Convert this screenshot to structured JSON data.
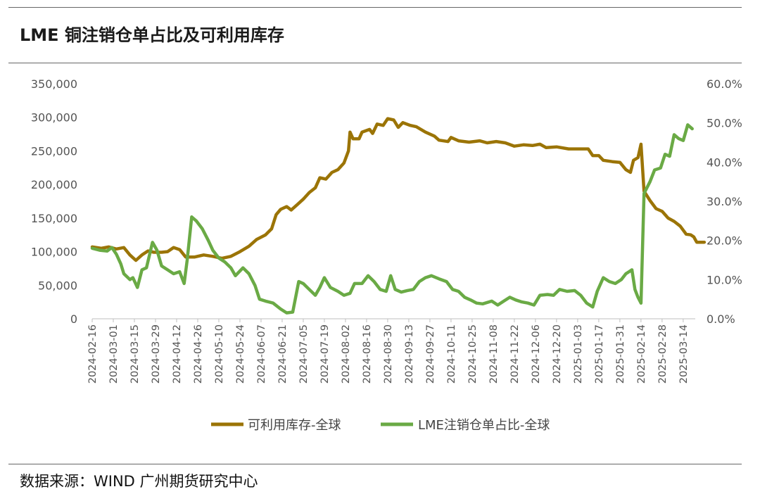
{
  "header": {
    "title": "LME 铜注销仓单占比及可利用库存"
  },
  "footer": {
    "source": "数据来源：WIND  广州期货研究中心"
  },
  "chart_data": {
    "type": "line",
    "title": "LME 铜注销仓单占比及可利用库存",
    "y_left": {
      "ylim": [
        0,
        350000
      ],
      "ticks": [
        0,
        50000,
        100000,
        150000,
        200000,
        250000,
        300000,
        350000
      ],
      "tick_labels": [
        "0",
        "50,000",
        "100,000",
        "150,000",
        "200,000",
        "250,000",
        "300,000",
        "350,000"
      ]
    },
    "y_right": {
      "ylim": [
        0,
        60
      ],
      "ticks": [
        0,
        10,
        20,
        30,
        40,
        50,
        60
      ],
      "tick_labels": [
        "0.0%",
        "10.0%",
        "20.0%",
        "30.0%",
        "40.0%",
        "50.0%",
        "60.0%"
      ]
    },
    "x_range": [
      "2024-02-16",
      "2025-03-22"
    ],
    "x_tick_labels": [
      "2024-02-16",
      "2024-03-01",
      "2024-03-15",
      "2024-03-29",
      "2024-04-12",
      "2024-04-26",
      "2024-05-10",
      "2024-05-24",
      "2024-06-07",
      "2024-06-21",
      "2024-07-05",
      "2024-07-19",
      "2024-08-02",
      "2024-08-16",
      "2024-08-30",
      "2024-09-13",
      "2024-09-27",
      "2024-10-11",
      "2024-10-25",
      "2024-11-08",
      "2024-11-22",
      "2024-12-06",
      "2024-12-20",
      "2025-01-03",
      "2025-01-17",
      "2025-01-31",
      "2025-02-14",
      "2025-02-28",
      "2025-03-14"
    ],
    "legend": "bottom",
    "series": [
      {
        "name": "可利用库存-全球",
        "axis": "left",
        "color": "#9b7406",
        "points": [
          [
            "2024-02-16",
            107000
          ],
          [
            "2024-02-22",
            105000
          ],
          [
            "2024-02-27",
            107000
          ],
          [
            "2024-03-03",
            104000
          ],
          [
            "2024-03-08",
            106000
          ],
          [
            "2024-03-12",
            95000
          ],
          [
            "2024-03-16",
            87000
          ],
          [
            "2024-03-20",
            95000
          ],
          [
            "2024-03-24",
            101000
          ],
          [
            "2024-03-28",
            99000
          ],
          [
            "2024-04-02",
            99000
          ],
          [
            "2024-04-06",
            100000
          ],
          [
            "2024-04-10",
            106000
          ],
          [
            "2024-04-14",
            103000
          ],
          [
            "2024-04-18",
            92000
          ],
          [
            "2024-04-24",
            92000
          ],
          [
            "2024-04-30",
            95000
          ],
          [
            "2024-05-06",
            93000
          ],
          [
            "2024-05-12",
            90000
          ],
          [
            "2024-05-18",
            93000
          ],
          [
            "2024-05-24",
            100000
          ],
          [
            "2024-05-30",
            108000
          ],
          [
            "2024-06-04",
            118000
          ],
          [
            "2024-06-10",
            125000
          ],
          [
            "2024-06-14",
            134000
          ],
          [
            "2024-06-17",
            155000
          ],
          [
            "2024-06-20",
            163000
          ],
          [
            "2024-06-24",
            167000
          ],
          [
            "2024-06-27",
            162000
          ],
          [
            "2024-07-01",
            170000
          ],
          [
            "2024-07-05",
            178000
          ],
          [
            "2024-07-09",
            188000
          ],
          [
            "2024-07-13",
            195000
          ],
          [
            "2024-07-16",
            210000
          ],
          [
            "2024-07-20",
            208000
          ],
          [
            "2024-07-24",
            218000
          ],
          [
            "2024-07-28",
            222000
          ],
          [
            "2024-08-01",
            232000
          ],
          [
            "2024-08-04",
            250000
          ],
          [
            "2024-08-05",
            278000
          ],
          [
            "2024-08-07",
            268000
          ],
          [
            "2024-08-11",
            268000
          ],
          [
            "2024-08-13",
            278000
          ],
          [
            "2024-08-18",
            282000
          ],
          [
            "2024-08-20",
            276000
          ],
          [
            "2024-08-23",
            290000
          ],
          [
            "2024-08-27",
            288000
          ],
          [
            "2024-08-30",
            298000
          ],
          [
            "2024-09-03",
            296000
          ],
          [
            "2024-09-06",
            285000
          ],
          [
            "2024-09-09",
            292000
          ],
          [
            "2024-09-14",
            288000
          ],
          [
            "2024-09-18",
            286000
          ],
          [
            "2024-09-24",
            278000
          ],
          [
            "2024-09-30",
            272000
          ],
          [
            "2024-10-03",
            266000
          ],
          [
            "2024-10-09",
            264000
          ],
          [
            "2024-10-11",
            270000
          ],
          [
            "2024-10-16",
            265000
          ],
          [
            "2024-10-23",
            263000
          ],
          [
            "2024-10-30",
            265000
          ],
          [
            "2024-11-04",
            262000
          ],
          [
            "2024-11-10",
            264000
          ],
          [
            "2024-11-16",
            262000
          ],
          [
            "2024-11-22",
            257000
          ],
          [
            "2024-11-28",
            259000
          ],
          [
            "2024-12-04",
            258000
          ],
          [
            "2024-12-09",
            260000
          ],
          [
            "2024-12-13",
            255000
          ],
          [
            "2024-12-20",
            256000
          ],
          [
            "2024-12-28",
            253000
          ],
          [
            "2025-01-03",
            253000
          ],
          [
            "2025-01-10",
            253000
          ],
          [
            "2025-01-13",
            243000
          ],
          [
            "2025-01-17",
            243000
          ],
          [
            "2025-01-20",
            236000
          ],
          [
            "2025-01-26",
            234000
          ],
          [
            "2025-01-31",
            233000
          ],
          [
            "2025-02-04",
            222000
          ],
          [
            "2025-02-07",
            218000
          ],
          [
            "2025-02-09",
            236000
          ],
          [
            "2025-02-12",
            240000
          ],
          [
            "2025-02-14",
            260000
          ],
          [
            "2025-02-16",
            190000
          ],
          [
            "2025-02-20",
            176000
          ],
          [
            "2025-02-24",
            164000
          ],
          [
            "2025-02-28",
            160000
          ],
          [
            "2025-03-04",
            150000
          ],
          [
            "2025-03-08",
            145000
          ],
          [
            "2025-03-12",
            138000
          ],
          [
            "2025-03-16",
            126000
          ],
          [
            "2025-03-19",
            125000
          ],
          [
            "2025-03-21",
            122000
          ],
          [
            "2025-03-23",
            114000
          ],
          [
            "2025-03-28",
            114000
          ]
        ]
      },
      {
        "name": "LME注销仓单占比-全球",
        "axis": "right",
        "color": "#6aaa45",
        "points": [
          [
            "2024-02-16",
            18.0
          ],
          [
            "2024-02-21",
            17.5
          ],
          [
            "2024-02-26",
            17.3
          ],
          [
            "2024-02-29",
            18.2
          ],
          [
            "2024-03-03",
            16.5
          ],
          [
            "2024-03-06",
            14.0
          ],
          [
            "2024-03-08",
            11.5
          ],
          [
            "2024-03-12",
            10.0
          ],
          [
            "2024-03-14",
            10.5
          ],
          [
            "2024-03-17",
            8.0
          ],
          [
            "2024-03-20",
            12.5
          ],
          [
            "2024-03-23",
            13.0
          ],
          [
            "2024-03-27",
            19.5
          ],
          [
            "2024-03-30",
            17.5
          ],
          [
            "2024-04-02",
            13.5
          ],
          [
            "2024-04-06",
            12.5
          ],
          [
            "2024-04-10",
            11.5
          ],
          [
            "2024-04-14",
            12.0
          ],
          [
            "2024-04-17",
            9.0
          ],
          [
            "2024-04-19",
            15.0
          ],
          [
            "2024-04-22",
            26.0
          ],
          [
            "2024-04-25",
            25.0
          ],
          [
            "2024-04-29",
            23.0
          ],
          [
            "2024-05-03",
            20.0
          ],
          [
            "2024-05-06",
            17.5
          ],
          [
            "2024-05-10",
            15.5
          ],
          [
            "2024-05-14",
            14.5
          ],
          [
            "2024-05-18",
            13.0
          ],
          [
            "2024-05-21",
            11.0
          ],
          [
            "2024-05-26",
            13.0
          ],
          [
            "2024-05-30",
            11.5
          ],
          [
            "2024-06-03",
            8.5
          ],
          [
            "2024-06-06",
            5.0
          ],
          [
            "2024-06-10",
            4.5
          ],
          [
            "2024-06-15",
            4.0
          ],
          [
            "2024-06-20",
            2.5
          ],
          [
            "2024-06-24",
            1.5
          ],
          [
            "2024-06-28",
            1.7
          ],
          [
            "2024-07-02",
            9.5
          ],
          [
            "2024-07-05",
            9.0
          ],
          [
            "2024-07-09",
            7.5
          ],
          [
            "2024-07-13",
            6.0
          ],
          [
            "2024-07-16",
            8.0
          ],
          [
            "2024-07-19",
            10.5
          ],
          [
            "2024-07-23",
            8.0
          ],
          [
            "2024-07-28",
            7.0
          ],
          [
            "2024-08-01",
            6.0
          ],
          [
            "2024-08-05",
            6.5
          ],
          [
            "2024-08-08",
            9.0
          ],
          [
            "2024-08-13",
            9.0
          ],
          [
            "2024-08-17",
            11.0
          ],
          [
            "2024-08-21",
            9.5
          ],
          [
            "2024-08-25",
            7.5
          ],
          [
            "2024-08-29",
            7.0
          ],
          [
            "2024-09-01",
            11.0
          ],
          [
            "2024-09-04",
            7.5
          ],
          [
            "2024-09-08",
            6.8
          ],
          [
            "2024-09-12",
            7.2
          ],
          [
            "2024-09-16",
            7.5
          ],
          [
            "2024-09-20",
            9.5
          ],
          [
            "2024-09-24",
            10.5
          ],
          [
            "2024-09-28",
            11.0
          ],
          [
            "2024-10-03",
            10.2
          ],
          [
            "2024-10-08",
            9.5
          ],
          [
            "2024-10-12",
            7.5
          ],
          [
            "2024-10-16",
            7.0
          ],
          [
            "2024-10-20",
            5.5
          ],
          [
            "2024-10-24",
            4.8
          ],
          [
            "2024-10-28",
            4.0
          ],
          [
            "2024-11-01",
            3.8
          ],
          [
            "2024-11-07",
            4.5
          ],
          [
            "2024-11-11",
            3.5
          ],
          [
            "2024-11-15",
            4.5
          ],
          [
            "2024-11-19",
            5.5
          ],
          [
            "2024-11-23",
            4.8
          ],
          [
            "2024-11-27",
            4.3
          ],
          [
            "2024-12-01",
            4.0
          ],
          [
            "2024-12-05",
            3.5
          ],
          [
            "2024-12-09",
            6.0
          ],
          [
            "2024-12-14",
            6.2
          ],
          [
            "2024-12-18",
            6.0
          ],
          [
            "2024-12-22",
            7.5
          ],
          [
            "2024-12-27",
            7.0
          ],
          [
            "2025-01-01",
            7.2
          ],
          [
            "2025-01-05",
            6.0
          ],
          [
            "2025-01-09",
            4.0
          ],
          [
            "2025-01-13",
            3.0
          ],
          [
            "2025-01-16",
            7.0
          ],
          [
            "2025-01-20",
            10.5
          ],
          [
            "2025-01-24",
            9.5
          ],
          [
            "2025-01-28",
            9.0
          ],
          [
            "2025-02-01",
            10.0
          ],
          [
            "2025-02-04",
            11.5
          ],
          [
            "2025-02-06",
            12.0
          ],
          [
            "2025-02-08",
            12.5
          ],
          [
            "2025-02-10",
            7.5
          ],
          [
            "2025-02-12",
            5.5
          ],
          [
            "2025-02-14",
            4.0
          ],
          [
            "2025-02-16",
            32.0
          ],
          [
            "2025-02-20",
            35.0
          ],
          [
            "2025-02-23",
            38.0
          ],
          [
            "2025-02-27",
            38.5
          ],
          [
            "2025-03-02",
            42.0
          ],
          [
            "2025-03-05",
            41.5
          ],
          [
            "2025-03-08",
            47.0
          ],
          [
            "2025-03-11",
            46.0
          ],
          [
            "2025-03-14",
            45.5
          ],
          [
            "2025-03-17",
            49.5
          ],
          [
            "2025-03-20",
            48.5
          ]
        ]
      }
    ]
  }
}
